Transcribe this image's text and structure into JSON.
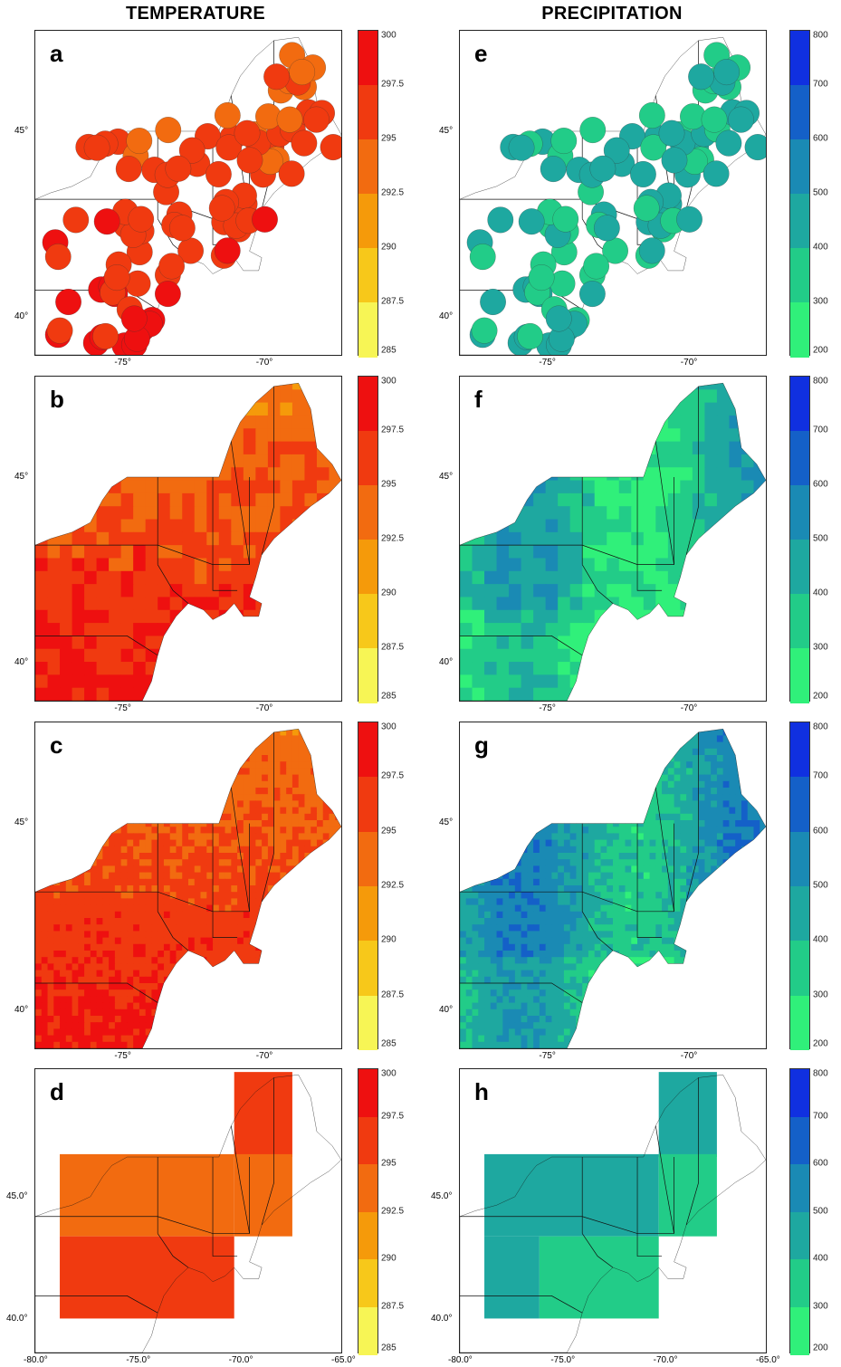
{
  "column_titles": [
    "TEMPERATURE",
    "PRECIPITATION"
  ],
  "panels": [
    {
      "id": "a",
      "style": "stations",
      "var": "temp",
      "lon_ticks": [
        "-75",
        "-70"
      ],
      "lat_ticks": [
        "40",
        "45"
      ]
    },
    {
      "id": "b",
      "style": "coarse",
      "var": "temp",
      "lon_ticks": [
        "-75",
        "-70"
      ],
      "lat_ticks": [
        "40",
        "45"
      ]
    },
    {
      "id": "c",
      "style": "fine",
      "var": "temp",
      "lon_ticks": [
        "-75",
        "-70"
      ],
      "lat_ticks": [
        "40",
        "45"
      ]
    },
    {
      "id": "d",
      "style": "block",
      "var": "temp",
      "lon_ticks": [
        "-80.0",
        "-75.0",
        "-70.0",
        "-65.0"
      ],
      "lat_ticks": [
        "40.0",
        "45.0"
      ]
    },
    {
      "id": "e",
      "style": "stations",
      "var": "precip",
      "lon_ticks": [
        "-75",
        "-70"
      ],
      "lat_ticks": [
        "40",
        "45"
      ]
    },
    {
      "id": "f",
      "style": "coarse",
      "var": "precip",
      "lon_ticks": [
        "-75",
        "-70"
      ],
      "lat_ticks": [
        "40",
        "45"
      ]
    },
    {
      "id": "g",
      "style": "fine",
      "var": "precip",
      "lon_ticks": [
        "-75",
        "-70"
      ],
      "lat_ticks": [
        "40",
        "45"
      ]
    },
    {
      "id": "h",
      "style": "block",
      "var": "precip",
      "lon_ticks": [
        "-80.0",
        "-75.0",
        "-70.0",
        "-65.0"
      ],
      "lat_ticks": [
        "40.0",
        "45.0"
      ]
    }
  ],
  "colorbars": {
    "temp": {
      "ticks": [
        "300",
        "297.5",
        "295",
        "292.5",
        "290",
        "287.5",
        "285"
      ],
      "colors": [
        "#ee1010",
        "#f03a10",
        "#f26b10",
        "#f59a0a",
        "#f7c81a",
        "#f7f555"
      ]
    },
    "precip": {
      "ticks": [
        "800",
        "700",
        "600",
        "500",
        "400",
        "300",
        "200"
      ],
      "colors": [
        "#1030e0",
        "#1460c8",
        "#1a8ab4",
        "#1ea8a0",
        "#22cc88",
        "#30f07a"
      ]
    }
  }
}
